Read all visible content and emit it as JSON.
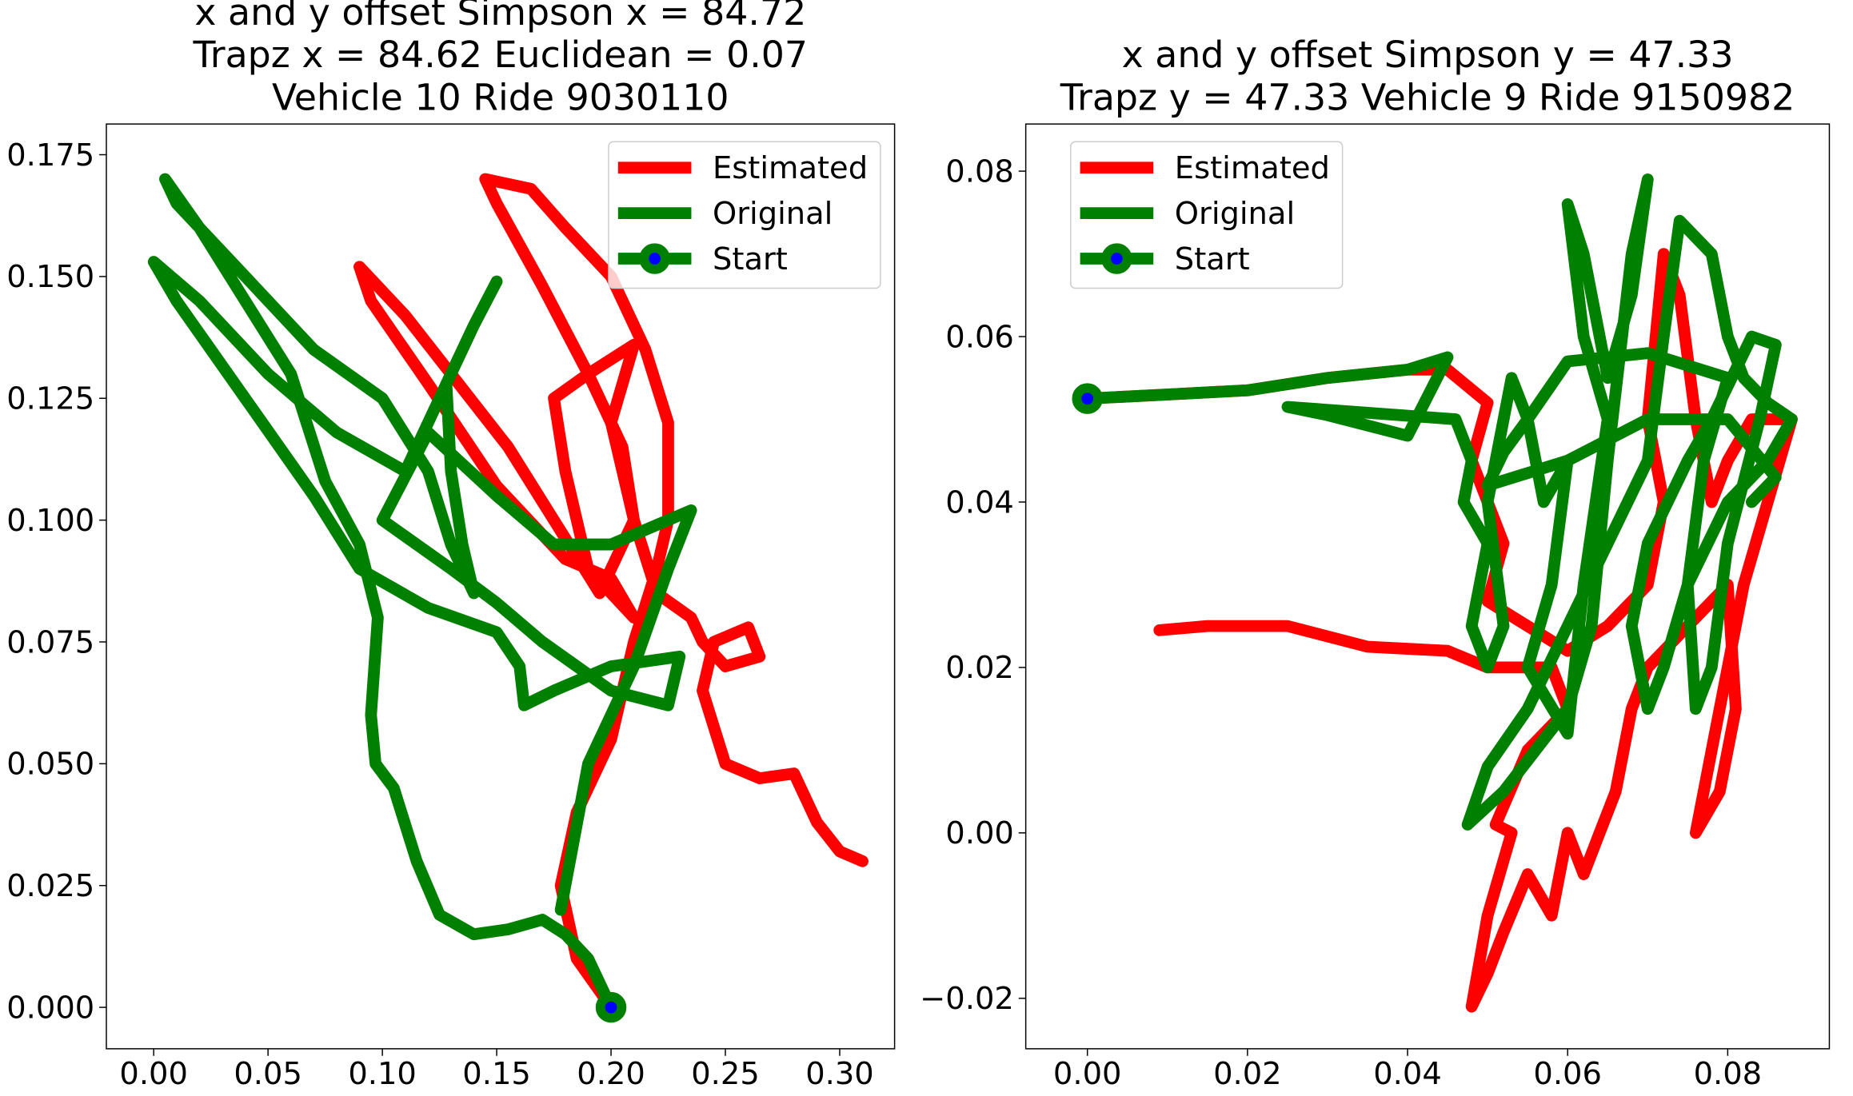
{
  "chart_data": [
    {
      "type": "line",
      "title": [
        "x and y offset Simpson x = 84.72",
        "Trapz x = 84.62 Euclidean = 0.07",
        "Vehicle 10 Ride 9030110"
      ],
      "legend": "upper right",
      "xlim": [
        -0.0207,
        0.324
      ],
      "ylim": [
        -0.0085,
        0.1813
      ],
      "xticks": [
        {
          "value": 0,
          "label": "0.00"
        },
        0.05,
        {
          "value": 0.1,
          "label": "0.10"
        },
        0.15,
        {
          "value": 0.2,
          "label": "0.20"
        },
        0.25,
        {
          "value": 0.3,
          "label": "0.30"
        }
      ],
      "yticks": [
        {
          "value": 0,
          "label": "0.000"
        },
        0.025,
        {
          "value": 0.05,
          "label": "0.050"
        },
        0.075,
        {
          "value": 0.1,
          "label": "0.100"
        },
        0.125,
        {
          "value": 0.15,
          "label": "0.150"
        },
        0.175
      ],
      "series": [
        {
          "name": "Estimated",
          "color": "#ff0000",
          "x": [
            0.2,
            0.185,
            0.178,
            0.185,
            0.2,
            0.21,
            0.22,
            0.225,
            0.225,
            0.215,
            0.2,
            0.18,
            0.165,
            0.145,
            0.15,
            0.17,
            0.19,
            0.205,
            0.21,
            0.195,
            0.175,
            0.155,
            0.13,
            0.11,
            0.09,
            0.095,
            0.12,
            0.15,
            0.18,
            0.2,
            0.21,
            0.19,
            0.18,
            0.175,
            0.19,
            0.21,
            0.2,
            0.21,
            0.22,
            0.235,
            0.24,
            0.25,
            0.265,
            0.26,
            0.245,
            0.24,
            0.25,
            0.265,
            0.28,
            0.29,
            0.3,
            0.31
          ],
          "values": [
            0,
            0.01,
            0.025,
            0.04,
            0.055,
            0.075,
            0.09,
            0.1,
            0.12,
            0.135,
            0.15,
            0.16,
            0.168,
            0.17,
            0.165,
            0.148,
            0.13,
            0.115,
            0.1,
            0.085,
            0.1,
            0.115,
            0.13,
            0.142,
            0.152,
            0.145,
            0.128,
            0.107,
            0.092,
            0.088,
            0.08,
            0.09,
            0.11,
            0.125,
            0.13,
            0.136,
            0.12,
            0.1,
            0.085,
            0.08,
            0.075,
            0.07,
            0.072,
            0.078,
            0.075,
            0.065,
            0.05,
            0.047,
            0.048,
            0.038,
            0.032,
            0.03
          ]
        },
        {
          "name": "Original",
          "color": "#008000",
          "x": [
            0.2,
            0.19,
            0.18,
            0.17,
            0.155,
            0.14,
            0.125,
            0.115,
            0.105,
            0.097,
            0.095,
            0.098,
            0.09,
            0.075,
            0.06,
            0.04,
            0.02,
            0.005,
            0.01,
            0.04,
            0.07,
            0.1,
            0.12,
            0.13,
            0.14,
            0.135,
            0.13,
            0.128,
            0.14,
            0.15,
            0.14,
            0.11,
            0.08,
            0.05,
            0.02,
            0,
            0.01,
            0.04,
            0.07,
            0.09,
            0.12,
            0.15,
            0.16,
            0.162,
            0.175,
            0.2,
            0.23,
            0.225,
            0.2,
            0.17,
            0.15,
            0.13,
            0.1,
            0.12,
            0.15,
            0.175,
            0.2,
            0.235,
            0.225,
            0.21,
            0.19,
            0.178
          ],
          "values": [
            0,
            0.01,
            0.015,
            0.018,
            0.016,
            0.015,
            0.019,
            0.03,
            0.045,
            0.05,
            0.06,
            0.08,
            0.095,
            0.108,
            0.13,
            0.145,
            0.16,
            0.17,
            0.165,
            0.15,
            0.135,
            0.125,
            0.11,
            0.095,
            0.085,
            0.095,
            0.11,
            0.128,
            0.14,
            0.149,
            0.14,
            0.11,
            0.118,
            0.13,
            0.145,
            0.153,
            0.145,
            0.125,
            0.105,
            0.09,
            0.082,
            0.077,
            0.07,
            0.062,
            0.065,
            0.07,
            0.072,
            0.062,
            0.065,
            0.075,
            0.083,
            0.09,
            0.1,
            0.118,
            0.105,
            0.095,
            0.095,
            0.102,
            0.09,
            0.07,
            0.05,
            0.02
          ]
        },
        {
          "name": "Start",
          "color": "#008000",
          "face": "#0000ff",
          "x": [
            0.2
          ],
          "values": [
            0
          ]
        }
      ]
    },
    {
      "type": "line",
      "title": [
        "x and y offset Simpson y = 47.33",
        "Trapz y = 47.33 Vehicle 9 Ride 9150982"
      ],
      "legend": "upper left",
      "xlim": [
        -0.0077,
        0.0927
      ],
      "ylim": [
        -0.0261,
        0.0857
      ],
      "xticks": [
        {
          "value": 0,
          "label": "0.00"
        },
        0.02,
        0.04,
        0.06,
        0.08
      ],
      "yticks": [
        {
          "value": -0.02,
          "label": "−0.02"
        },
        {
          "value": 0,
          "label": "0.00"
        },
        0.02,
        0.04,
        0.06,
        0.08
      ],
      "series": [
        {
          "name": "Estimated",
          "color": "#ff0000",
          "x": [
            0,
            0.01,
            0.02,
            0.03,
            0.04,
            0.045,
            0.05,
            0.048,
            0.05,
            0.052,
            0.05,
            0.055,
            0.06,
            0.065,
            0.07,
            0.072,
            0.07,
            0.072,
            0.074,
            0.076,
            0.078,
            0.08,
            0.083,
            0.088,
            0.085,
            0.082,
            0.08,
            0.078,
            0.076,
            0.079,
            0.081,
            0.08,
            0.075,
            0.07,
            0.068,
            0.066,
            0.064,
            0.062,
            0.06,
            0.058,
            0.055,
            0.052,
            0.05,
            0.048,
            0.05,
            0.053,
            0.051,
            0.055,
            0.06,
            0.058,
            0.05,
            0.045,
            0.035,
            0.025,
            0.015,
            0.009
          ],
          "values": [
            0.0525,
            0.053,
            0.0535,
            0.055,
            0.056,
            0.056,
            0.052,
            0.045,
            0.04,
            0.035,
            0.028,
            0.025,
            0.022,
            0.025,
            0.03,
            0.04,
            0.05,
            0.07,
            0.065,
            0.05,
            0.04,
            0.045,
            0.05,
            0.05,
            0.04,
            0.03,
            0.02,
            0.01,
            0,
            0.005,
            0.015,
            0.03,
            0.025,
            0.02,
            0.015,
            0.005,
            0,
            -0.005,
            0,
            -0.01,
            -0.005,
            -0.012,
            -0.017,
            -0.021,
            -0.01,
            0,
            0.001,
            0.01,
            0.015,
            0.02,
            0.02,
            0.022,
            0.0225,
            0.025,
            0.025,
            0.0245
          ]
        },
        {
          "name": "Original",
          "color": "#008000",
          "x": [
            0,
            0.01,
            0.02,
            0.03,
            0.04,
            0.045,
            0.04,
            0.03,
            0.025,
            0.046,
            0.048,
            0.047,
            0.05,
            0.048,
            0.05,
            0.052,
            0.05,
            0.053,
            0.055,
            0.057,
            0.06,
            0.058,
            0.055,
            0.06,
            0.062,
            0.065,
            0.062,
            0.06,
            0.062,
            0.065,
            0.068,
            0.07,
            0.068,
            0.065,
            0.063,
            0.06,
            0.056,
            0.052,
            0.0475,
            0.05,
            0.055,
            0.06,
            0.065,
            0.07,
            0.072,
            0.074,
            0.078,
            0.08,
            0.082,
            0.085,
            0.088,
            0.085,
            0.08,
            0.075,
            0.072,
            0.07,
            0.068,
            0.07,
            0.075,
            0.078,
            0.083,
            0.086,
            0.084,
            0.08,
            0.078,
            0.076,
            0.075,
            0.077,
            0.08,
            0.07,
            0.06,
            0.055,
            0.052,
            0.05,
            0.06,
            0.07,
            0.08,
            0.086,
            0.083
          ],
          "values": [
            0.0525,
            0.053,
            0.0535,
            0.055,
            0.056,
            0.0575,
            0.048,
            0.0505,
            0.0515,
            0.05,
            0.045,
            0.04,
            0.035,
            0.025,
            0.02,
            0.025,
            0.04,
            0.055,
            0.05,
            0.04,
            0.045,
            0.03,
            0.02,
            0.012,
            0.03,
            0.05,
            0.06,
            0.076,
            0.07,
            0.055,
            0.065,
            0.079,
            0.07,
            0.045,
            0.025,
            0.015,
            0.01,
            0.005,
            0.001,
            0.008,
            0.015,
            0.025,
            0.035,
            0.045,
            0.06,
            0.074,
            0.07,
            0.06,
            0.055,
            0.052,
            0.05,
            0.045,
            0.04,
            0.03,
            0.02,
            0.015,
            0.025,
            0.035,
            0.045,
            0.05,
            0.06,
            0.059,
            0.05,
            0.035,
            0.02,
            0.015,
            0.03,
            0.045,
            0.055,
            0.058,
            0.057,
            0.05,
            0.046,
            0.042,
            0.045,
            0.05,
            0.05,
            0.043,
            0.04
          ]
        },
        {
          "name": "Start",
          "color": "#008000",
          "face": "#0000ff",
          "x": [
            0
          ],
          "values": [
            0.0525
          ]
        }
      ]
    }
  ]
}
